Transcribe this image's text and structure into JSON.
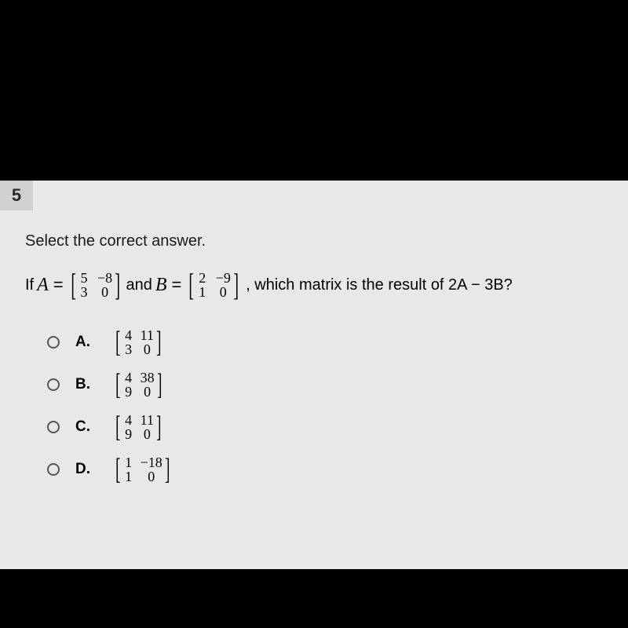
{
  "background_color": "#000000",
  "content_background": "#e8e8ea",
  "question_number": "5",
  "prompt": "Select the correct answer.",
  "equation": {
    "prefix": "If",
    "varA": "A",
    "matrixA": [
      [
        "5",
        "−8"
      ],
      [
        "3",
        "0"
      ]
    ],
    "conjunction": "and",
    "varB": "B",
    "matrixB": [
      [
        "2",
        "−9"
      ],
      [
        "1",
        "0"
      ]
    ],
    "suffix": ", which matrix is the result of 2A − 3B?"
  },
  "options": [
    {
      "letter": "A.",
      "matrix": [
        [
          "4",
          "11"
        ],
        [
          "3",
          "0"
        ]
      ]
    },
    {
      "letter": "B.",
      "matrix": [
        [
          "4",
          "38"
        ],
        [
          "9",
          "0"
        ]
      ]
    },
    {
      "letter": "C.",
      "matrix": [
        [
          "4",
          "11"
        ],
        [
          "9",
          "0"
        ]
      ]
    },
    {
      "letter": "D.",
      "matrix": [
        [
          "1",
          "−18"
        ],
        [
          "1",
          "0"
        ]
      ]
    }
  ],
  "styling": {
    "qnum_bg": "#d0d0d2",
    "text_color": "#1a1a1a",
    "radio_border": "#555555",
    "font_body": "Arial",
    "font_math": "Times New Roman",
    "qnum_fontsize": 22,
    "prompt_fontsize": 20,
    "matrix_fontsize": 18
  }
}
